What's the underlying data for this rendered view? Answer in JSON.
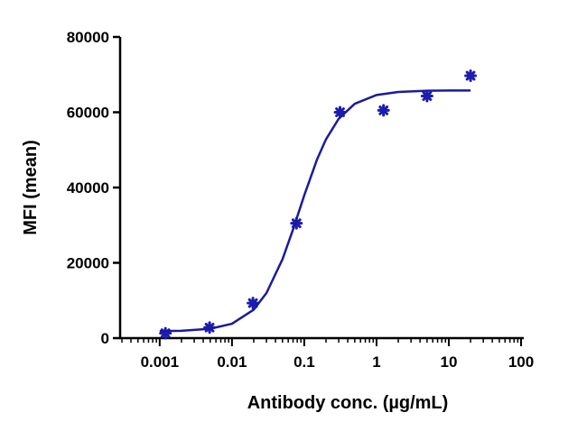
{
  "chart_data": {
    "type": "scatter",
    "xlabel": "Antibody conc. (µg/mL)",
    "ylabel": "MFI (mean)",
    "xscale": "log",
    "xlim": [
      0.0003,
      100
    ],
    "ylim": [
      0,
      80000
    ],
    "xticks": [
      0.001,
      0.01,
      0.1,
      1,
      10,
      100
    ],
    "xminorticks": [
      0.0003,
      0.0004,
      0.0005,
      0.0006,
      0.0007,
      0.0008,
      0.0009,
      0.002,
      0.003,
      0.004,
      0.005,
      0.006,
      0.007,
      0.008,
      0.009,
      0.02,
      0.03,
      0.04,
      0.05,
      0.06,
      0.07,
      0.08,
      0.09,
      0.2,
      0.3,
      0.4,
      0.5,
      0.6,
      0.7,
      0.8,
      0.9,
      2,
      3,
      4,
      5,
      6,
      7,
      8,
      9,
      20,
      30,
      40,
      50,
      60,
      70,
      80,
      90
    ],
    "yticks": [
      0,
      20000,
      40000,
      60000,
      80000
    ],
    "series": [
      {
        "style": "markers",
        "color": "#1c1cb0",
        "x": [
          0.0012,
          0.0049,
          0.0195,
          0.078,
          0.3125,
          1.25,
          5,
          20
        ],
        "values": [
          1300,
          2800,
          9300,
          30500,
          60000,
          60500,
          64300,
          69700
        ]
      },
      {
        "style": "line",
        "color": "#1a1a9c",
        "x": [
          0.001,
          0.002,
          0.005,
          0.01,
          0.02,
          0.03,
          0.05,
          0.07,
          0.1,
          0.15,
          0.2,
          0.3,
          0.5,
          1,
          2,
          5,
          10,
          20
        ],
        "values": [
          1852,
          1958,
          2481,
          3819,
          7566,
          11975,
          20962,
          28873,
          37938,
          47416,
          52837,
          58287,
          62251,
          64582,
          65393,
          65706,
          65769,
          65790
        ]
      }
    ]
  }
}
